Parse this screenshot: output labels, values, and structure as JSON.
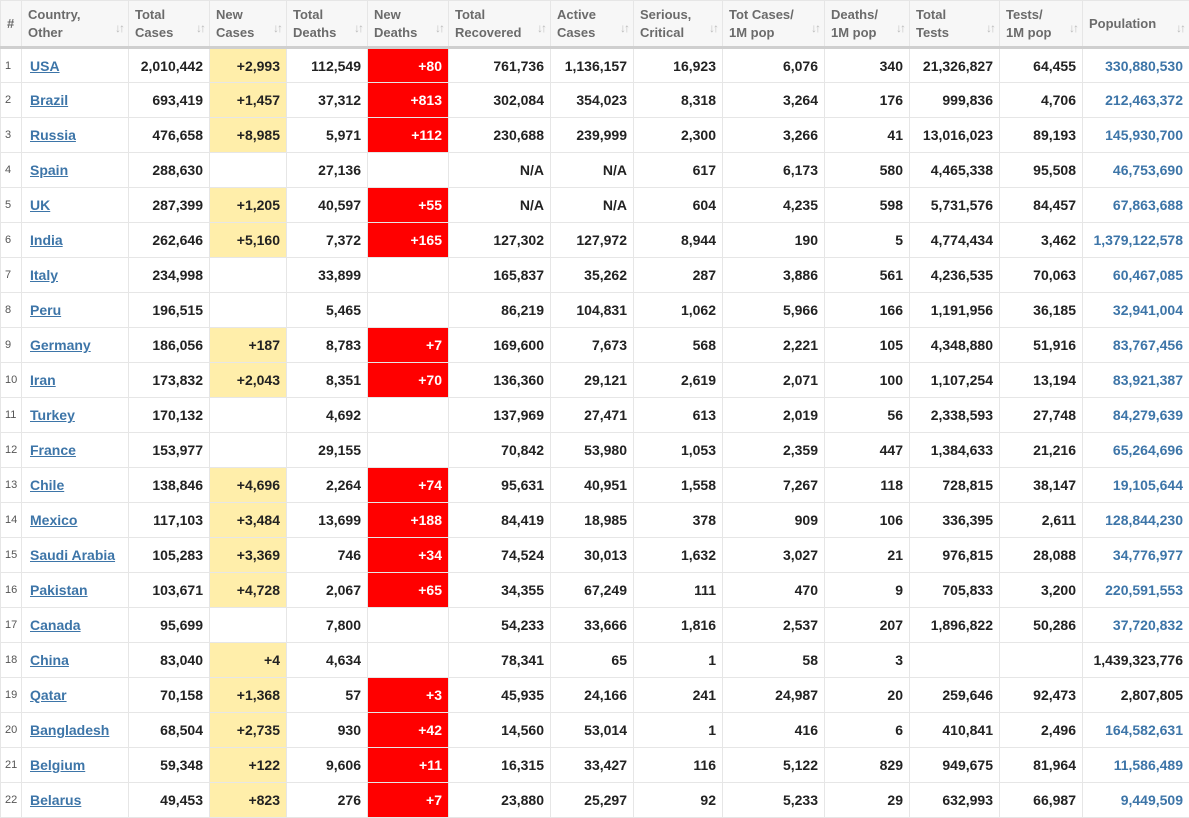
{
  "headers": [
    {
      "line1": "#",
      "line2": ""
    },
    {
      "line1": "Country,",
      "line2": "Other"
    },
    {
      "line1": "Total",
      "line2": "Cases"
    },
    {
      "line1": "New",
      "line2": "Cases"
    },
    {
      "line1": "Total",
      "line2": "Deaths"
    },
    {
      "line1": "New",
      "line2": "Deaths"
    },
    {
      "line1": "Total",
      "line2": "Recovered"
    },
    {
      "line1": "Active",
      "line2": "Cases"
    },
    {
      "line1": "Serious,",
      "line2": "Critical"
    },
    {
      "line1": "Tot Cases/",
      "line2": "1M pop"
    },
    {
      "line1": "Deaths/",
      "line2": "1M pop"
    },
    {
      "line1": "Total",
      "line2": "Tests"
    },
    {
      "line1": "Tests/",
      "line2": "1M pop"
    },
    {
      "line1": "Population",
      "line2": ""
    }
  ],
  "sort_icons": {
    "active": "sort-desc-icon",
    "inactive": "sort-icon"
  },
  "colors": {
    "new_cases_bg": "#ffeeaa",
    "new_deaths_bg": "#ff0000",
    "link": "#3d75a8"
  },
  "rows": [
    {
      "rank": "1",
      "country": "USA",
      "total_cases": "2,010,442",
      "new_cases": "+2,993",
      "total_deaths": "112,549",
      "new_deaths": "+80",
      "total_recovered": "761,736",
      "active_cases": "1,136,157",
      "serious": "16,923",
      "cases_per_1m": "6,076",
      "deaths_per_1m": "340",
      "total_tests": "21,326,827",
      "tests_per_1m": "64,455",
      "population": "330,880,530",
      "pop_link": true
    },
    {
      "rank": "2",
      "country": "Brazil",
      "total_cases": "693,419",
      "new_cases": "+1,457",
      "total_deaths": "37,312",
      "new_deaths": "+813",
      "total_recovered": "302,084",
      "active_cases": "354,023",
      "serious": "8,318",
      "cases_per_1m": "3,264",
      "deaths_per_1m": "176",
      "total_tests": "999,836",
      "tests_per_1m": "4,706",
      "population": "212,463,372",
      "pop_link": true
    },
    {
      "rank": "3",
      "country": "Russia",
      "total_cases": "476,658",
      "new_cases": "+8,985",
      "total_deaths": "5,971",
      "new_deaths": "+112",
      "total_recovered": "230,688",
      "active_cases": "239,999",
      "serious": "2,300",
      "cases_per_1m": "3,266",
      "deaths_per_1m": "41",
      "total_tests": "13,016,023",
      "tests_per_1m": "89,193",
      "population": "145,930,700",
      "pop_link": true
    },
    {
      "rank": "4",
      "country": "Spain",
      "total_cases": "288,630",
      "new_cases": "",
      "total_deaths": "27,136",
      "new_deaths": "",
      "total_recovered": "N/A",
      "active_cases": "N/A",
      "serious": "617",
      "cases_per_1m": "6,173",
      "deaths_per_1m": "580",
      "total_tests": "4,465,338",
      "tests_per_1m": "95,508",
      "population": "46,753,690",
      "pop_link": true
    },
    {
      "rank": "5",
      "country": "UK",
      "total_cases": "287,399",
      "new_cases": "+1,205",
      "total_deaths": "40,597",
      "new_deaths": "+55",
      "total_recovered": "N/A",
      "active_cases": "N/A",
      "serious": "604",
      "cases_per_1m": "4,235",
      "deaths_per_1m": "598",
      "total_tests": "5,731,576",
      "tests_per_1m": "84,457",
      "population": "67,863,688",
      "pop_link": true
    },
    {
      "rank": "6",
      "country": "India",
      "total_cases": "262,646",
      "new_cases": "+5,160",
      "total_deaths": "7,372",
      "new_deaths": "+165",
      "total_recovered": "127,302",
      "active_cases": "127,972",
      "serious": "8,944",
      "cases_per_1m": "190",
      "deaths_per_1m": "5",
      "total_tests": "4,774,434",
      "tests_per_1m": "3,462",
      "population": "1,379,122,578",
      "pop_link": true
    },
    {
      "rank": "7",
      "country": "Italy",
      "total_cases": "234,998",
      "new_cases": "",
      "total_deaths": "33,899",
      "new_deaths": "",
      "total_recovered": "165,837",
      "active_cases": "35,262",
      "serious": "287",
      "cases_per_1m": "3,886",
      "deaths_per_1m": "561",
      "total_tests": "4,236,535",
      "tests_per_1m": "70,063",
      "population": "60,467,085",
      "pop_link": true
    },
    {
      "rank": "8",
      "country": "Peru",
      "total_cases": "196,515",
      "new_cases": "",
      "total_deaths": "5,465",
      "new_deaths": "",
      "total_recovered": "86,219",
      "active_cases": "104,831",
      "serious": "1,062",
      "cases_per_1m": "5,966",
      "deaths_per_1m": "166",
      "total_tests": "1,191,956",
      "tests_per_1m": "36,185",
      "population": "32,941,004",
      "pop_link": true
    },
    {
      "rank": "9",
      "country": "Germany",
      "total_cases": "186,056",
      "new_cases": "+187",
      "total_deaths": "8,783",
      "new_deaths": "+7",
      "total_recovered": "169,600",
      "active_cases": "7,673",
      "serious": "568",
      "cases_per_1m": "2,221",
      "deaths_per_1m": "105",
      "total_tests": "4,348,880",
      "tests_per_1m": "51,916",
      "population": "83,767,456",
      "pop_link": true
    },
    {
      "rank": "10",
      "country": "Iran",
      "total_cases": "173,832",
      "new_cases": "+2,043",
      "total_deaths": "8,351",
      "new_deaths": "+70",
      "total_recovered": "136,360",
      "active_cases": "29,121",
      "serious": "2,619",
      "cases_per_1m": "2,071",
      "deaths_per_1m": "100",
      "total_tests": "1,107,254",
      "tests_per_1m": "13,194",
      "population": "83,921,387",
      "pop_link": true
    },
    {
      "rank": "11",
      "country": "Turkey",
      "total_cases": "170,132",
      "new_cases": "",
      "total_deaths": "4,692",
      "new_deaths": "",
      "total_recovered": "137,969",
      "active_cases": "27,471",
      "serious": "613",
      "cases_per_1m": "2,019",
      "deaths_per_1m": "56",
      "total_tests": "2,338,593",
      "tests_per_1m": "27,748",
      "population": "84,279,639",
      "pop_link": true
    },
    {
      "rank": "12",
      "country": "France",
      "total_cases": "153,977",
      "new_cases": "",
      "total_deaths": "29,155",
      "new_deaths": "",
      "total_recovered": "70,842",
      "active_cases": "53,980",
      "serious": "1,053",
      "cases_per_1m": "2,359",
      "deaths_per_1m": "447",
      "total_tests": "1,384,633",
      "tests_per_1m": "21,216",
      "population": "65,264,696",
      "pop_link": true
    },
    {
      "rank": "13",
      "country": "Chile",
      "total_cases": "138,846",
      "new_cases": "+4,696",
      "total_deaths": "2,264",
      "new_deaths": "+74",
      "total_recovered": "95,631",
      "active_cases": "40,951",
      "serious": "1,558",
      "cases_per_1m": "7,267",
      "deaths_per_1m": "118",
      "total_tests": "728,815",
      "tests_per_1m": "38,147",
      "population": "19,105,644",
      "pop_link": true
    },
    {
      "rank": "14",
      "country": "Mexico",
      "total_cases": "117,103",
      "new_cases": "+3,484",
      "total_deaths": "13,699",
      "new_deaths": "+188",
      "total_recovered": "84,419",
      "active_cases": "18,985",
      "serious": "378",
      "cases_per_1m": "909",
      "deaths_per_1m": "106",
      "total_tests": "336,395",
      "tests_per_1m": "2,611",
      "population": "128,844,230",
      "pop_link": true
    },
    {
      "rank": "15",
      "country": "Saudi Arabia",
      "total_cases": "105,283",
      "new_cases": "+3,369",
      "total_deaths": "746",
      "new_deaths": "+34",
      "total_recovered": "74,524",
      "active_cases": "30,013",
      "serious": "1,632",
      "cases_per_1m": "3,027",
      "deaths_per_1m": "21",
      "total_tests": "976,815",
      "tests_per_1m": "28,088",
      "population": "34,776,977",
      "pop_link": true
    },
    {
      "rank": "16",
      "country": "Pakistan",
      "total_cases": "103,671",
      "new_cases": "+4,728",
      "total_deaths": "2,067",
      "new_deaths": "+65",
      "total_recovered": "34,355",
      "active_cases": "67,249",
      "serious": "111",
      "cases_per_1m": "470",
      "deaths_per_1m": "9",
      "total_tests": "705,833",
      "tests_per_1m": "3,200",
      "population": "220,591,553",
      "pop_link": true
    },
    {
      "rank": "17",
      "country": "Canada",
      "total_cases": "95,699",
      "new_cases": "",
      "total_deaths": "7,800",
      "new_deaths": "",
      "total_recovered": "54,233",
      "active_cases": "33,666",
      "serious": "1,816",
      "cases_per_1m": "2,537",
      "deaths_per_1m": "207",
      "total_tests": "1,896,822",
      "tests_per_1m": "50,286",
      "population": "37,720,832",
      "pop_link": true
    },
    {
      "rank": "18",
      "country": "China",
      "total_cases": "83,040",
      "new_cases": "+4",
      "total_deaths": "4,634",
      "new_deaths": "",
      "total_recovered": "78,341",
      "active_cases": "65",
      "serious": "1",
      "cases_per_1m": "58",
      "deaths_per_1m": "3",
      "total_tests": "",
      "tests_per_1m": "",
      "population": "1,439,323,776",
      "pop_link": false
    },
    {
      "rank": "19",
      "country": "Qatar",
      "total_cases": "70,158",
      "new_cases": "+1,368",
      "total_deaths": "57",
      "new_deaths": "+3",
      "total_recovered": "45,935",
      "active_cases": "24,166",
      "serious": "241",
      "cases_per_1m": "24,987",
      "deaths_per_1m": "20",
      "total_tests": "259,646",
      "tests_per_1m": "92,473",
      "population": "2,807,805",
      "pop_link": false
    },
    {
      "rank": "20",
      "country": "Bangladesh",
      "total_cases": "68,504",
      "new_cases": "+2,735",
      "total_deaths": "930",
      "new_deaths": "+42",
      "total_recovered": "14,560",
      "active_cases": "53,014",
      "serious": "1",
      "cases_per_1m": "416",
      "deaths_per_1m": "6",
      "total_tests": "410,841",
      "tests_per_1m": "2,496",
      "population": "164,582,631",
      "pop_link": true
    },
    {
      "rank": "21",
      "country": "Belgium",
      "total_cases": "59,348",
      "new_cases": "+122",
      "total_deaths": "9,606",
      "new_deaths": "+11",
      "total_recovered": "16,315",
      "active_cases": "33,427",
      "serious": "116",
      "cases_per_1m": "5,122",
      "deaths_per_1m": "829",
      "total_tests": "949,675",
      "tests_per_1m": "81,964",
      "population": "11,586,489",
      "pop_link": true
    },
    {
      "rank": "22",
      "country": "Belarus",
      "total_cases": "49,453",
      "new_cases": "+823",
      "total_deaths": "276",
      "new_deaths": "+7",
      "total_recovered": "23,880",
      "active_cases": "25,297",
      "serious": "92",
      "cases_per_1m": "5,233",
      "deaths_per_1m": "29",
      "total_tests": "632,993",
      "tests_per_1m": "66,987",
      "population": "9,449,509",
      "pop_link": true
    }
  ]
}
